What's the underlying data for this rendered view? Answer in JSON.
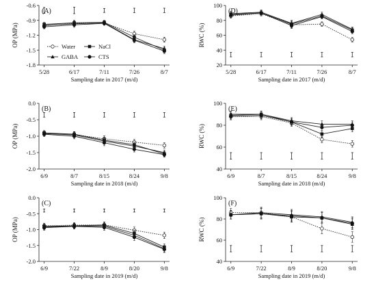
{
  "chart_data": [
    {
      "type": "line",
      "panel_label": "(A)",
      "ylabel": "OP (MPa)",
      "xlabel": "Sampling date in 2017 (m/d)",
      "categories": [
        "5/28",
        "6/17",
        "7/11",
        "7/26",
        "8/7"
      ],
      "ylim": [
        -1.8,
        -0.6
      ],
      "yticks": [
        -1.8,
        -1.5,
        -1.2,
        -0.9,
        -0.6
      ],
      "ytick_labels": [
        "-1.8",
        "-1.5",
        "-1.2",
        "-0.9",
        "-0.6"
      ],
      "legend_placement": "bottom-left",
      "series": [
        {
          "name": "Water",
          "marker": "open-circle",
          "dash": "dotted",
          "values": [
            -1.01,
            -0.96,
            -0.95,
            -1.17,
            -1.29
          ]
        },
        {
          "name": "NaCl",
          "marker": "filled-square",
          "dash": "solid",
          "values": [
            -0.98,
            -0.95,
            -0.94,
            -1.24,
            -1.5
          ]
        },
        {
          "name": "GABA",
          "marker": "filled-triangle",
          "dash": "solid",
          "values": [
            -1.0,
            -0.97,
            -0.95,
            -1.29,
            -1.47
          ]
        },
        {
          "name": "CTS",
          "marker": "filled-circle",
          "dash": "solid",
          "values": [
            -1.03,
            -0.99,
            -0.96,
            -1.3,
            -1.52
          ]
        }
      ],
      "errors": [
        0.04,
        0.05,
        0.04,
        0.05,
        0.05
      ],
      "lsd_bar_top": -0.7,
      "lsd_half": [
        0.06,
        0.065,
        0.04,
        0.045,
        0.045
      ]
    },
    {
      "type": "line",
      "panel_label": "(D)",
      "ylabel": "RWC (%)",
      "xlabel": "Sampling date in 2017 (m/d)",
      "categories": [
        "5/28",
        "6/17",
        "7/11",
        "7/26",
        "8/7"
      ],
      "ylim": [
        20,
        100
      ],
      "yticks": [
        20,
        40,
        60,
        80,
        100
      ],
      "ytick_labels": [
        "20",
        "40",
        "60",
        "80",
        "100"
      ],
      "series": [
        {
          "name": "Water",
          "marker": "open-circle",
          "dash": "dotted",
          "values": [
            86,
            89,
            74,
            75,
            54
          ]
        },
        {
          "name": "NaCl",
          "marker": "filled-square",
          "dash": "solid",
          "values": [
            88,
            90,
            75,
            86,
            67
          ]
        },
        {
          "name": "GABA",
          "marker": "filled-triangle",
          "dash": "solid",
          "values": [
            89,
            91,
            76,
            88,
            68
          ]
        },
        {
          "name": "CTS",
          "marker": "filled-circle",
          "dash": "solid",
          "values": [
            87,
            90,
            73,
            85,
            65
          ]
        }
      ],
      "errors": [
        3,
        3,
        4,
        3,
        3
      ],
      "lsd_bar_top": 34,
      "lsd_half": [
        3,
        3,
        3,
        3,
        3
      ]
    },
    {
      "type": "line",
      "panel_label": "(B)",
      "ylabel": "OP (MPa)",
      "xlabel": "Sampling date in 2018 (m/d)",
      "categories": [
        "6/9",
        "8/7",
        "8/15",
        "8/24",
        "9/8"
      ],
      "ylim": [
        -2.0,
        0.0
      ],
      "yticks": [
        -2.0,
        -1.5,
        -1.0,
        -0.5,
        0.0
      ],
      "ytick_labels": [
        "-2.0",
        "-1.5",
        "-1.0",
        "-0.5",
        "0.0"
      ],
      "series": [
        {
          "name": "Water",
          "marker": "open-circle",
          "dash": "dotted",
          "values": [
            -0.9,
            -0.95,
            -1.08,
            -1.18,
            -1.28
          ]
        },
        {
          "name": "NaCl",
          "marker": "filled-square",
          "dash": "solid",
          "values": [
            -0.9,
            -0.94,
            -1.12,
            -1.26,
            -1.54
          ]
        },
        {
          "name": "GABA",
          "marker": "filled-triangle",
          "dash": "solid",
          "values": [
            -0.92,
            -0.96,
            -1.15,
            -1.3,
            -1.5
          ]
        },
        {
          "name": "CTS",
          "marker": "filled-circle",
          "dash": "solid",
          "values": [
            -0.94,
            -1.0,
            -1.2,
            -1.4,
            -1.56
          ]
        }
      ],
      "errors": [
        0.07,
        0.08,
        0.09,
        0.08,
        0.08
      ],
      "lsd_bar_top": -0.35,
      "lsd_half": [
        0.07,
        0.07,
        0.07,
        0.07,
        0.07
      ]
    },
    {
      "type": "line",
      "panel_label": "(E)",
      "ylabel": "RWC (%)",
      "xlabel": "Sampling date in 2018 (m/d)",
      "categories": [
        "6/9",
        "8/7",
        "8/15",
        "8/24",
        "9/8"
      ],
      "ylim": [
        40,
        100
      ],
      "yticks": [
        40,
        60,
        80,
        100
      ],
      "ytick_labels": [
        "40",
        "60",
        "80",
        "100"
      ],
      "series": [
        {
          "name": "Water",
          "marker": "open-circle",
          "dash": "dotted",
          "values": [
            88,
            88,
            82,
            67,
            63
          ]
        },
        {
          "name": "NaCl",
          "marker": "filled-square",
          "dash": "solid",
          "values": [
            89,
            90,
            83,
            72,
            77
          ]
        },
        {
          "name": "GABA",
          "marker": "filled-triangle",
          "dash": "solid",
          "values": [
            90,
            90,
            84,
            81,
            81
          ]
        },
        {
          "name": "CTS",
          "marker": "filled-circle",
          "dash": "solid",
          "values": [
            88,
            89,
            83,
            78,
            80
          ]
        }
      ],
      "errors": [
        3,
        3,
        3,
        3,
        3
      ],
      "lsd_bar_top": 52,
      "lsd_half": [
        3,
        3,
        3,
        3,
        3
      ]
    },
    {
      "type": "line",
      "panel_label": "(C)",
      "ylabel": "OP (MPa)",
      "xlabel": "Sampling date in 2019 (m/d)",
      "categories": [
        "6/9",
        "7/22",
        "8/9",
        "8/20",
        "9/8"
      ],
      "ylim": [
        -2.0,
        0.0
      ],
      "yticks": [
        -2.0,
        -1.5,
        -1.0,
        -0.5,
        0.0
      ],
      "ytick_labels": [
        "-2.0",
        "-1.5",
        "-1.0",
        "-0.5",
        "0.0"
      ],
      "series": [
        {
          "name": "Water",
          "marker": "open-circle",
          "dash": "dotted",
          "values": [
            -0.88,
            -0.86,
            -0.85,
            -1.02,
            -1.18
          ]
        },
        {
          "name": "NaCl",
          "marker": "filled-square",
          "dash": "solid",
          "values": [
            -0.9,
            -0.88,
            -0.86,
            -1.12,
            -1.55
          ]
        },
        {
          "name": "GABA",
          "marker": "filled-triangle",
          "dash": "solid",
          "values": [
            -0.92,
            -0.89,
            -0.89,
            -1.18,
            -1.6
          ]
        },
        {
          "name": "CTS",
          "marker": "filled-circle",
          "dash": "solid",
          "values": [
            -0.94,
            -0.9,
            -0.93,
            -1.24,
            -1.62
          ]
        }
      ],
      "errors": [
        0.08,
        0.08,
        0.09,
        0.1,
        0.1
      ],
      "lsd_bar_top": -0.4,
      "lsd_half": [
        0.05,
        0.05,
        0.05,
        0.05,
        0.05
      ]
    },
    {
      "type": "line",
      "panel_label": "(F)",
      "ylabel": "RWC (%)",
      "xlabel": "Sampling date in 2019 (m/d)",
      "categories": [
        "6/9",
        "7/22",
        "8/9",
        "8/20",
        "9/8"
      ],
      "ylim": [
        40,
        100
      ],
      "yticks": [
        40,
        60,
        80,
        100
      ],
      "ytick_labels": [
        "40",
        "60",
        "80",
        "100"
      ],
      "series": [
        {
          "name": "Water",
          "marker": "open-circle",
          "dash": "dotted",
          "values": [
            86,
            86,
            82,
            71,
            63
          ]
        },
        {
          "name": "NaCl",
          "marker": "filled-square",
          "dash": "solid",
          "values": [
            84,
            85,
            82,
            81,
            75
          ]
        },
        {
          "name": "GABA",
          "marker": "filled-triangle",
          "dash": "solid",
          "values": [
            84,
            86,
            84,
            82,
            77
          ]
        },
        {
          "name": "CTS",
          "marker": "filled-circle",
          "dash": "solid",
          "values": [
            84,
            85,
            83,
            81,
            76
          ]
        }
      ],
      "errors": [
        4,
        5,
        5,
        5,
        5
      ],
      "lsd_bar_top": 52,
      "lsd_half": [
        3,
        3,
        3,
        3,
        3
      ]
    }
  ]
}
